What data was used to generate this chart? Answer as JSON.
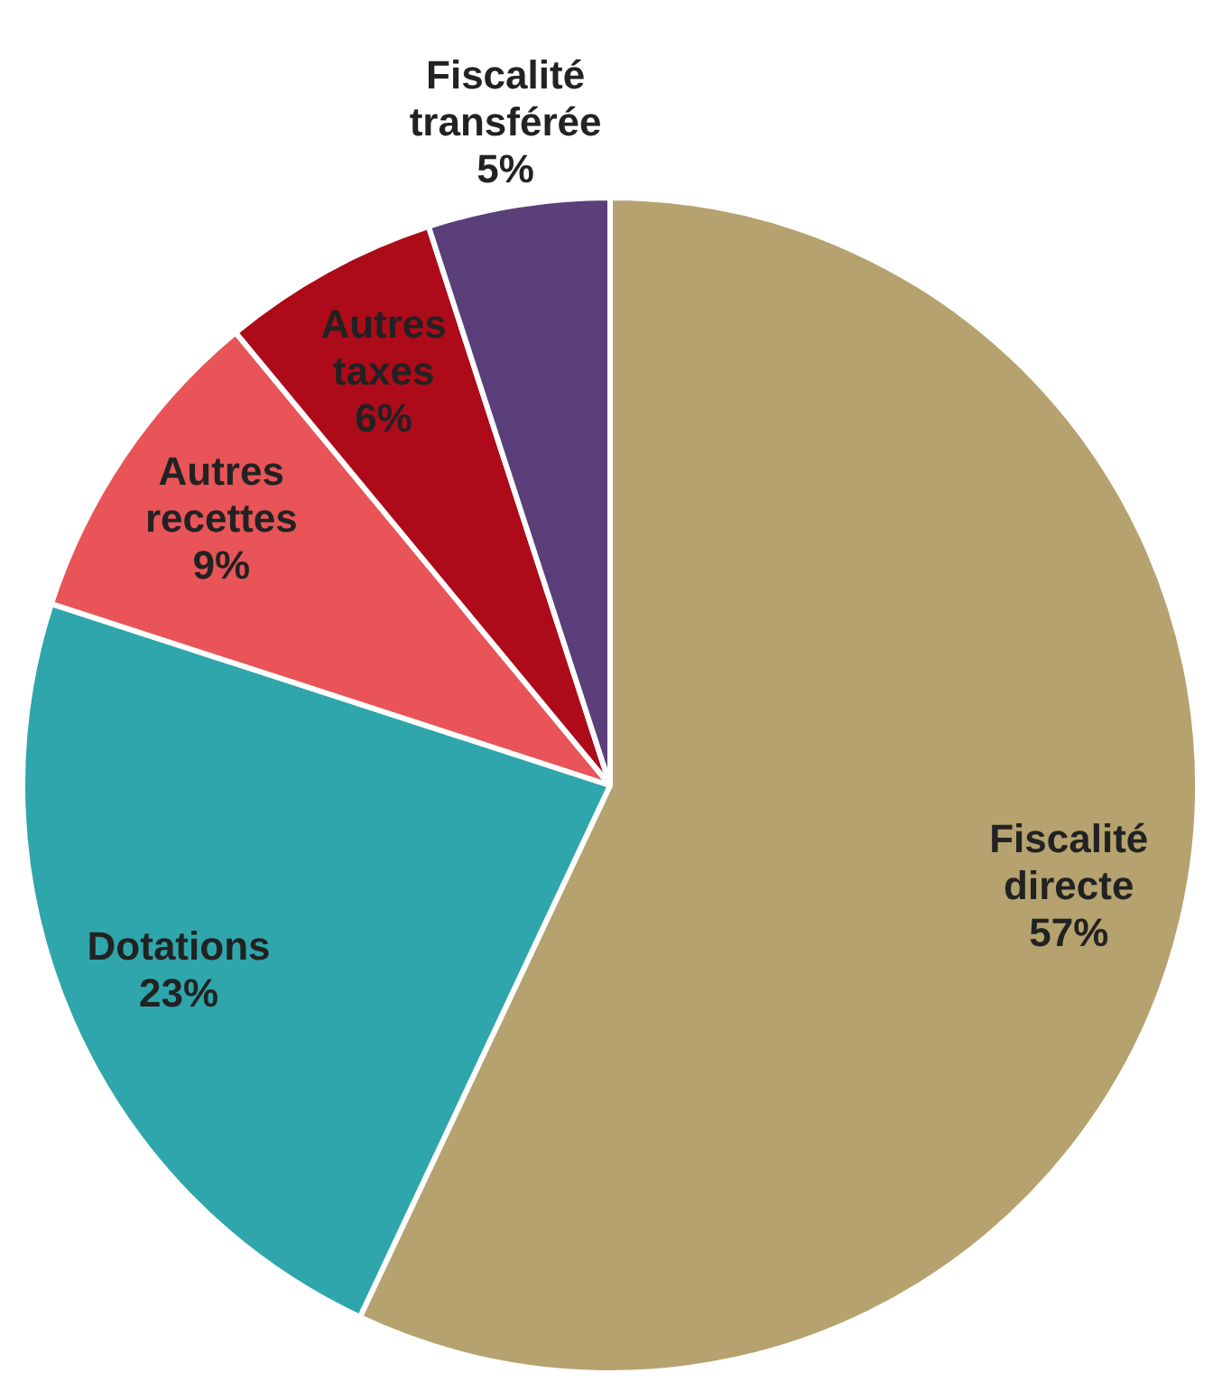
{
  "chart_data": {
    "type": "pie",
    "categories": [
      "Fiscalité directe",
      "Dotations",
      "Autres recettes",
      "Autres taxes",
      "Fiscalité transférée"
    ],
    "values": [
      57,
      23,
      9,
      6,
      5
    ],
    "value_labels": [
      "57%",
      "23%",
      "9%",
      "6%",
      "5%"
    ],
    "colors": [
      "#b5a26e",
      "#2fa6ab",
      "#e85457",
      "#ad0b19",
      "#5a3f7a"
    ],
    "legend": false
  }
}
